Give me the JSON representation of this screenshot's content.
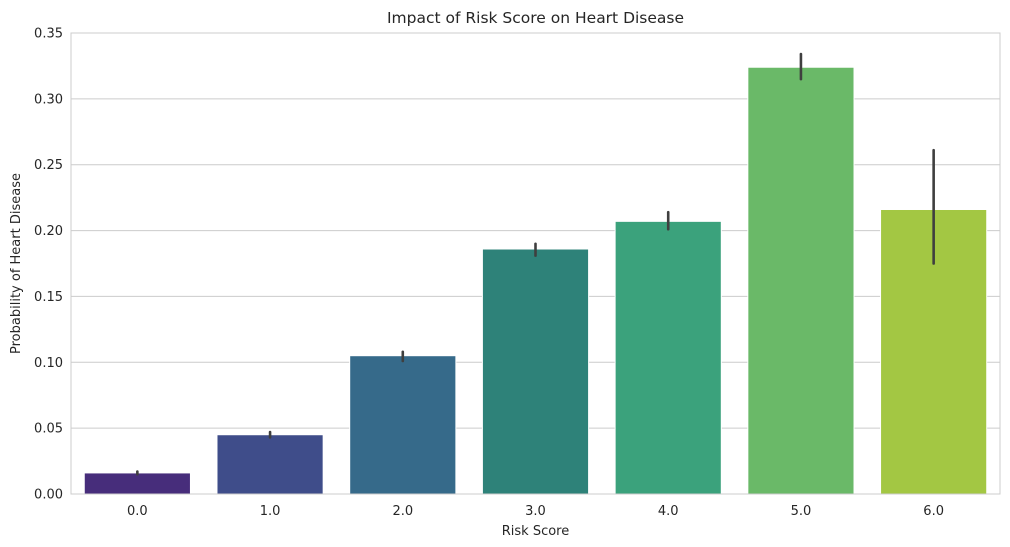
{
  "chart_data": {
    "type": "bar",
    "title": "Impact of Risk Score on Heart Disease",
    "xlabel": "Risk Score",
    "ylabel": "Probability of Heart Disease",
    "categories": [
      "0.0",
      "1.0",
      "2.0",
      "3.0",
      "4.0",
      "5.0",
      "6.0"
    ],
    "values": [
      0.016,
      0.045,
      0.105,
      0.186,
      0.207,
      0.324,
      0.216
    ],
    "error_low": [
      0.015,
      0.043,
      0.101,
      0.181,
      0.201,
      0.315,
      0.175
    ],
    "error_high": [
      0.017,
      0.047,
      0.108,
      0.19,
      0.214,
      0.334,
      0.261
    ],
    "colors": [
      "#472d7b",
      "#3f4d8a",
      "#366a8a",
      "#2e8279",
      "#3ba27c",
      "#6ab968",
      "#a3c743"
    ],
    "ylim": [
      0,
      0.35
    ],
    "yticks": [
      0.0,
      0.05,
      0.1,
      0.15,
      0.2,
      0.25,
      0.3,
      0.35
    ],
    "ytick_labels": [
      "0.00",
      "0.05",
      "0.10",
      "0.15",
      "0.20",
      "0.25",
      "0.30",
      "0.35"
    ],
    "grid": true,
    "legend": "none"
  }
}
